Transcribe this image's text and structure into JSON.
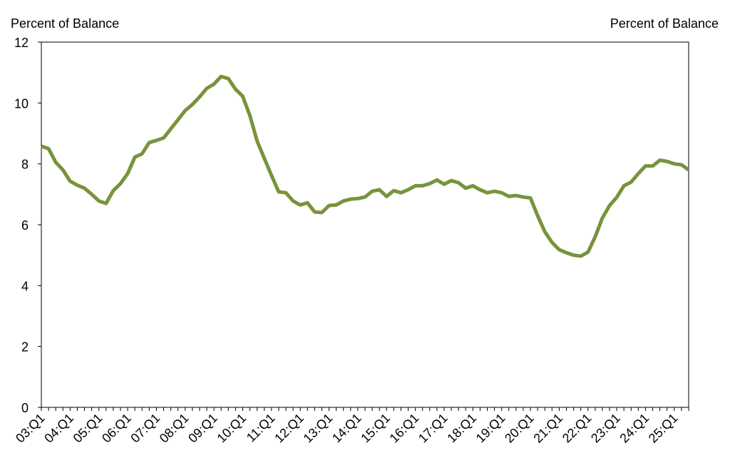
{
  "chart_data": {
    "type": "line",
    "y_label": "Percent of Balance",
    "y2_label": "Percent of Balance",
    "categories": [
      "03:Q1",
      null,
      null,
      null,
      "04:Q1",
      null,
      null,
      null,
      "05:Q1",
      null,
      null,
      null,
      "06:Q1",
      null,
      null,
      null,
      "07:Q1",
      null,
      null,
      null,
      "08:Q1",
      null,
      null,
      null,
      "09:Q1",
      null,
      null,
      null,
      "10:Q1",
      null,
      null,
      null,
      "11:Q1",
      null,
      null,
      null,
      "12:Q1",
      null,
      null,
      null,
      "13:Q1",
      null,
      null,
      null,
      "14:Q1",
      null,
      null,
      null,
      "15:Q1",
      null,
      null,
      null,
      "16:Q1",
      null,
      null,
      null,
      "17:Q1",
      null,
      null,
      null,
      "18:Q1",
      null,
      null,
      null,
      "19:Q1",
      null,
      null,
      null,
      "20:Q1",
      null,
      null,
      null,
      "21:Q1",
      null,
      null,
      null,
      "22:Q1",
      null,
      null,
      null,
      "23:Q1",
      null,
      null,
      null,
      "24:Q1",
      null,
      null,
      null,
      "25:Q1",
      null,
      null
    ],
    "values": [
      8.58,
      8.5,
      8.05,
      7.8,
      7.43,
      7.3,
      7.2,
      7.0,
      6.78,
      6.7,
      7.12,
      7.35,
      7.68,
      8.22,
      8.33,
      8.7,
      8.77,
      8.85,
      9.15,
      9.45,
      9.75,
      9.95,
      10.2,
      10.48,
      10.62,
      10.87,
      10.8,
      10.45,
      10.22,
      9.58,
      8.75,
      8.18,
      7.62,
      7.08,
      7.05,
      6.78,
      6.65,
      6.72,
      6.42,
      6.4,
      6.63,
      6.65,
      6.78,
      6.84,
      6.86,
      6.91,
      7.1,
      7.15,
      6.93,
      7.12,
      7.05,
      7.15,
      7.28,
      7.28,
      7.35,
      7.47,
      7.33,
      7.45,
      7.38,
      7.2,
      7.28,
      7.15,
      7.05,
      7.1,
      7.05,
      6.93,
      6.96,
      6.91,
      6.88,
      6.3,
      5.77,
      5.42,
      5.18,
      5.08,
      5.0,
      4.97,
      5.1,
      5.6,
      6.22,
      6.63,
      6.9,
      7.28,
      7.4,
      7.68,
      7.93,
      7.93,
      8.12,
      8.08,
      8.0,
      7.97,
      7.8
    ],
    "color": "#77933c",
    "ylim": [
      0,
      12
    ],
    "yticks": [
      0,
      2,
      4,
      6,
      8,
      10,
      12
    ]
  }
}
